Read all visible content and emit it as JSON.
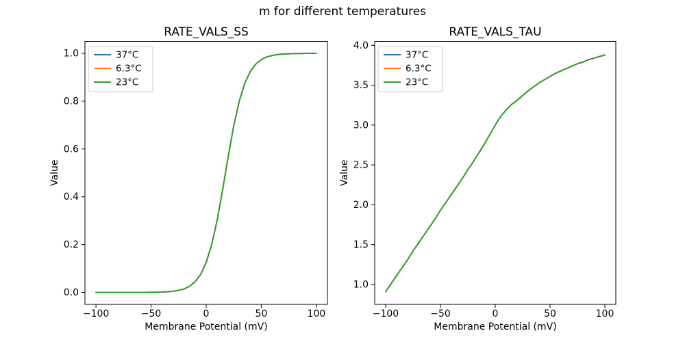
{
  "figure": {
    "suptitle": "m for different temperatures",
    "background": "#ffffff",
    "text_color": "#000000"
  },
  "chart_data": [
    {
      "type": "line",
      "title": "RATE_VALS_SS",
      "xlabel": "Membrane Potential (mV)",
      "ylabel": "Value",
      "xlim": [
        -110,
        110
      ],
      "ylim": [
        -0.05,
        1.05
      ],
      "xticks": {
        "values": [
          -100,
          -50,
          0,
          50,
          100
        ],
        "labels": [
          "−100",
          "−50",
          "0",
          "50",
          "100"
        ]
      },
      "yticks": {
        "values": [
          0.0,
          0.2,
          0.4,
          0.6,
          0.8,
          1.0
        ],
        "labels": [
          "0.0",
          "0.2",
          "0.4",
          "0.6",
          "0.8",
          "1.0"
        ]
      },
      "grid": false,
      "legend_position": "upper left",
      "x": [
        -100,
        -95,
        -90,
        -85,
        -80,
        -75,
        -70,
        -65,
        -60,
        -55,
        -50,
        -45,
        -40,
        -35,
        -30,
        -25,
        -20,
        -15,
        -10,
        -5,
        0,
        5,
        10,
        15,
        20,
        25,
        30,
        35,
        40,
        45,
        50,
        55,
        60,
        65,
        70,
        75,
        80,
        85,
        90,
        95,
        100
      ],
      "series": [
        {
          "name": "37°C",
          "color": "#1f77b4"
        },
        {
          "name": "6.3°C",
          "color": "#ff7f0e"
        },
        {
          "name": "23°C",
          "color": "#2ca02c"
        }
      ],
      "values_shared_by_all_series": [
        0.0,
        0.0,
        0.0,
        0.0,
        0.0,
        0.0,
        0.0001,
        0.0001,
        0.0002,
        0.0003,
        0.0006,
        0.001,
        0.0017,
        0.0029,
        0.005,
        0.0086,
        0.0146,
        0.026,
        0.045,
        0.076,
        0.125,
        0.2,
        0.303,
        0.431,
        0.569,
        0.697,
        0.8,
        0.875,
        0.924,
        0.955,
        0.974,
        0.985,
        0.991,
        0.995,
        0.997,
        0.998,
        0.999,
        0.999,
        1.0,
        1.0,
        1.0
      ],
      "overlap_note": "all three temperature curves coincide exactly; only the last-drawn green 23°C curve is visible"
    },
    {
      "type": "line",
      "title": "RATE_VALS_TAU",
      "xlabel": "Membrane Potential (mV)",
      "ylabel": "Value",
      "xlim": [
        -110,
        110
      ],
      "ylim": [
        0.75,
        4.05
      ],
      "xticks": {
        "values": [
          -100,
          -50,
          0,
          50,
          100
        ],
        "labels": [
          "−100",
          "−50",
          "0",
          "50",
          "100"
        ]
      },
      "yticks": {
        "values": [
          1.0,
          1.5,
          2.0,
          2.5,
          3.0,
          3.5,
          4.0
        ],
        "labels": [
          "1.0",
          "1.5",
          "2.0",
          "2.5",
          "3.0",
          "3.5",
          "4.0"
        ]
      },
      "grid": false,
      "legend_position": "upper left",
      "x": [
        -100,
        -95,
        -90,
        -85,
        -80,
        -75,
        -70,
        -65,
        -60,
        -55,
        -50,
        -45,
        -40,
        -35,
        -30,
        -25,
        -20,
        -15,
        -10,
        -5,
        0,
        5,
        10,
        15,
        20,
        25,
        30,
        35,
        40,
        45,
        50,
        55,
        60,
        65,
        70,
        75,
        80,
        85,
        90,
        95,
        100
      ],
      "series": [
        {
          "name": "37°C",
          "color": "#1f77b4"
        },
        {
          "name": "6.3°C",
          "color": "#ff7f0e"
        },
        {
          "name": "23°C",
          "color": "#2ca02c"
        }
      ],
      "values_shared_by_all_series": [
        0.91,
        1.01,
        1.11,
        1.21,
        1.31,
        1.42,
        1.52,
        1.62,
        1.72,
        1.82,
        1.93,
        2.03,
        2.13,
        2.23,
        2.33,
        2.44,
        2.54,
        2.65,
        2.76,
        2.88,
        3.0,
        3.11,
        3.19,
        3.26,
        3.31,
        3.37,
        3.43,
        3.48,
        3.53,
        3.57,
        3.61,
        3.65,
        3.68,
        3.71,
        3.74,
        3.77,
        3.79,
        3.82,
        3.84,
        3.86,
        3.88
      ],
      "overlap_note": "all three temperature curves coincide exactly; only the last-drawn green 23°C curve is visible"
    }
  ],
  "style": {
    "spine_color": "#000000",
    "legend_border_color": "#cccccc",
    "legend_background": "#ffffff"
  }
}
